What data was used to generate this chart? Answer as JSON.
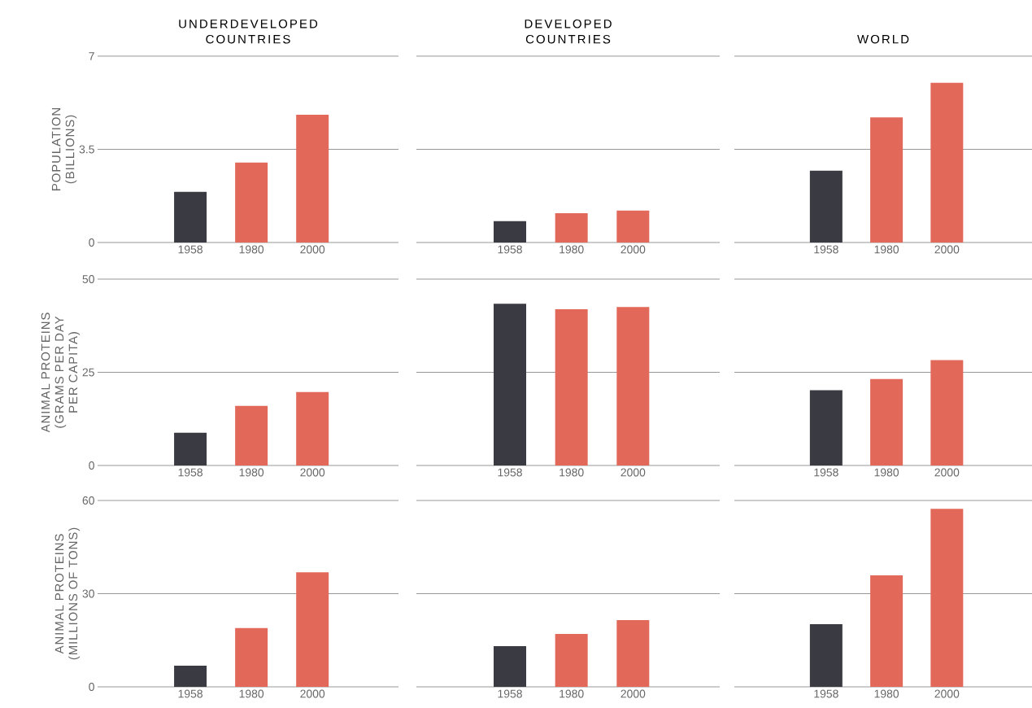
{
  "chart_data": [
    {
      "type": "bar",
      "title": "UNDERDEVELOPED COUNTRIES",
      "ylabel": "POPULATION (BILLIONS)",
      "categories": [
        "1958",
        "1980",
        "2000"
      ],
      "values": [
        1.9,
        3.0,
        4.8
      ],
      "colors": [
        "#3a3a42",
        "#e2695a",
        "#e2695a"
      ],
      "ylim": [
        0,
        7
      ],
      "yticks": [
        0,
        3.5,
        7
      ],
      "grid": "y"
    },
    {
      "type": "bar",
      "title": "DEVELOPED COUNTRIES",
      "categories": [
        "1958",
        "1980",
        "2000"
      ],
      "values": [
        0.8,
        1.1,
        1.2
      ],
      "colors": [
        "#3a3a42",
        "#e2695a",
        "#e2695a"
      ],
      "ylim": [
        0,
        7
      ],
      "yticks": [
        0,
        3.5,
        7
      ],
      "grid": "y",
      "tick_labels": "x"
    },
    {
      "type": "bar",
      "title": "WORLD",
      "categories": [
        "1958",
        "1980",
        "2000"
      ],
      "values": [
        2.7,
        4.7,
        6.0
      ],
      "colors": [
        "#3a3a42",
        "#e2695a",
        "#e2695a"
      ],
      "ylim": [
        0,
        7
      ],
      "yticks": [
        0,
        3.5,
        7
      ],
      "grid": "y",
      "tick_labels": "x"
    },
    {
      "type": "bar",
      "ylabel": "ANIMAL PROTEINS (GRAMS PER DAY PER CAPITA)",
      "categories": [
        "1958",
        "1980",
        "2000"
      ],
      "values": [
        8.8,
        16,
        19.7
      ],
      "colors": [
        "#3a3a42",
        "#e2695a",
        "#e2695a"
      ],
      "ylim": [
        0,
        50
      ],
      "yticks": [
        0,
        25,
        50
      ],
      "grid": "y"
    },
    {
      "type": "bar",
      "categories": [
        "1958",
        "1980",
        "2000"
      ],
      "values": [
        43.4,
        41.9,
        42.5
      ],
      "colors": [
        "#3a3a42",
        "#e2695a",
        "#e2695a"
      ],
      "ylim": [
        0,
        50
      ],
      "yticks": [
        0,
        25,
        50
      ],
      "grid": "y",
      "tick_labels": "x"
    },
    {
      "type": "bar",
      "categories": [
        "1958",
        "1980",
        "2000"
      ],
      "values": [
        20.2,
        23.2,
        28.3
      ],
      "colors": [
        "#3a3a42",
        "#e2695a",
        "#e2695a"
      ],
      "ylim": [
        0,
        50
      ],
      "yticks": [
        0,
        25,
        50
      ],
      "grid": "y",
      "tick_labels": "x"
    },
    {
      "type": "bar",
      "ylabel": "ANIMAL PROTEINS (MILLIONS OF TONS)",
      "categories": [
        "1958",
        "1980",
        "2000"
      ],
      "values": [
        6.8,
        18.9,
        36.9
      ],
      "colors": [
        "#3a3a42",
        "#e2695a",
        "#e2695a"
      ],
      "ylim": [
        0,
        60
      ],
      "yticks": [
        0,
        30,
        60
      ],
      "grid": "y"
    },
    {
      "type": "bar",
      "categories": [
        "1958",
        "1980",
        "2000"
      ],
      "values": [
        13.1,
        17,
        21.5
      ],
      "colors": [
        "#3a3a42",
        "#e2695a",
        "#e2695a"
      ],
      "ylim": [
        0,
        60
      ],
      "yticks": [
        0,
        30,
        60
      ],
      "grid": "y",
      "tick_labels": "x"
    },
    {
      "type": "bar",
      "categories": [
        "1958",
        "1980",
        "2000"
      ],
      "values": [
        20.2,
        35.9,
        57.3
      ],
      "colors": [
        "#3a3a42",
        "#e2695a",
        "#e2695a"
      ],
      "ylim": [
        0,
        60
      ],
      "yticks": [
        0,
        30,
        60
      ],
      "grid": "y",
      "tick_labels": "x"
    }
  ]
}
